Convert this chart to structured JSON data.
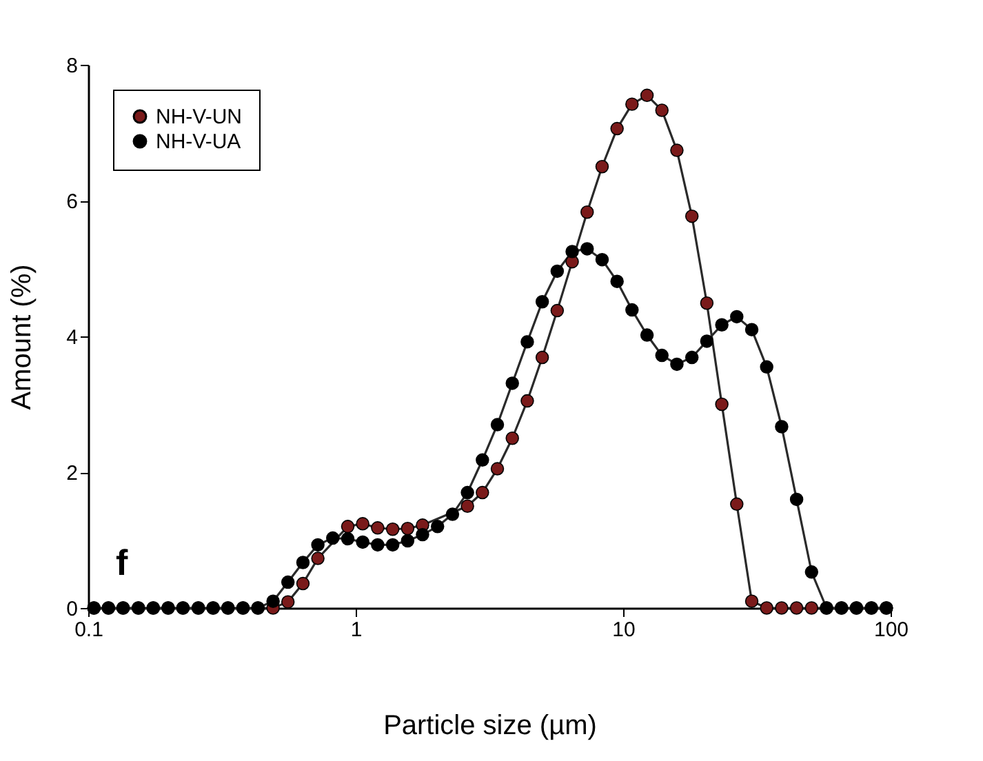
{
  "chart_data": {
    "type": "line",
    "xlabel": "Particle size (µm)",
    "ylabel": "Amount (%)",
    "x": [
      0.105,
      0.119,
      0.135,
      0.154,
      0.175,
      0.199,
      0.226,
      0.258,
      0.293,
      0.333,
      0.379,
      0.431,
      0.491,
      0.558,
      0.635,
      0.722,
      0.821,
      0.934,
      1.062,
      1.208,
      1.375,
      1.564,
      1.778,
      2.023,
      2.301,
      2.617,
      2.977,
      3.386,
      3.851,
      4.381,
      4.983,
      5.668,
      6.447,
      7.334,
      8.342,
      9.489,
      10.79,
      12.28,
      13.96,
      15.88,
      18.07,
      20.55,
      23.38,
      26.59,
      30.25,
      34.4,
      39.13,
      44.51,
      50.63,
      57.59,
      65.51,
      74.51,
      84.75,
      96.4
    ],
    "series": [
      {
        "name": "NH-V-UN",
        "color": "#7a1a1a",
        "values": [
          0,
          0,
          0,
          0,
          0,
          0,
          0,
          0,
          0,
          0,
          0,
          0,
          0,
          0.09,
          0.36,
          0.73,
          null,
          1.2,
          1.24,
          1.18,
          1.16,
          1.17,
          1.22,
          null,
          null,
          1.5,
          1.7,
          2.05,
          2.5,
          3.05,
          3.69,
          4.38,
          5.1,
          5.83,
          6.5,
          7.06,
          7.42,
          7.55,
          7.33,
          6.74,
          5.77,
          4.49,
          3.0,
          1.53,
          0.1,
          0,
          0,
          0,
          0,
          0,
          0,
          0,
          0,
          0
        ]
      },
      {
        "name": "NH-V-UA",
        "color": "#000000",
        "values": [
          0,
          0,
          0,
          0,
          0,
          0,
          0,
          0,
          0,
          0,
          0,
          0,
          0.1,
          0.38,
          0.67,
          0.93,
          1.03,
          1.02,
          0.97,
          0.93,
          0.93,
          0.99,
          1.08,
          1.2,
          1.38,
          1.7,
          2.18,
          2.7,
          3.31,
          3.92,
          4.51,
          4.96,
          5.25,
          5.29,
          5.13,
          4.81,
          4.39,
          4.02,
          3.72,
          3.59,
          3.69,
          3.93,
          4.17,
          4.29,
          4.1,
          3.55,
          2.67,
          1.6,
          0.53,
          0,
          0,
          0,
          0,
          0
        ]
      }
    ],
    "log": "x",
    "xlim": [
      0.1,
      100
    ],
    "xticks": [
      0.1,
      1,
      10,
      100
    ],
    "ylim": [
      0,
      8
    ],
    "yticks": [
      0,
      2,
      4,
      6,
      8
    ],
    "grid": false,
    "legend": "top left",
    "marker": "circle",
    "line_style": "solid",
    "annotations": [
      "f"
    ]
  }
}
